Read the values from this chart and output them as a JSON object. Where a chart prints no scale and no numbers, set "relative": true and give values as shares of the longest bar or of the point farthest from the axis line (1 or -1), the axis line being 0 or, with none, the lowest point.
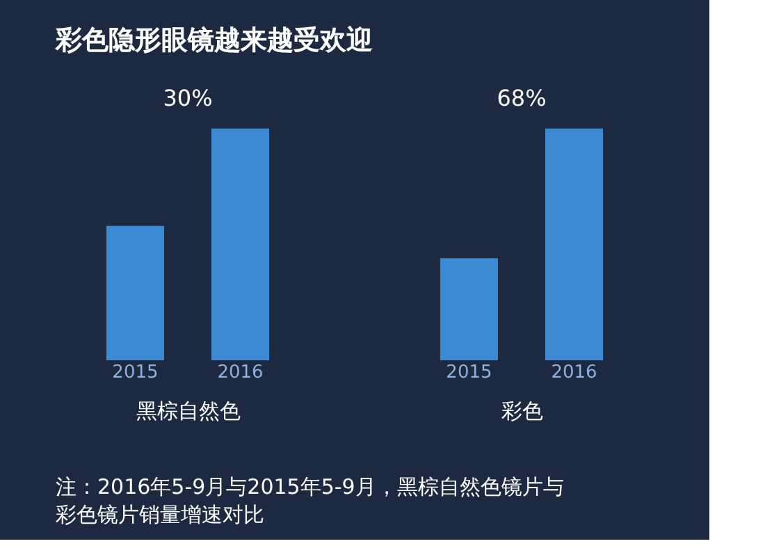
{
  "chart_data": [
    {
      "type": "bar",
      "title": "彩色隐形眼镜越来越受欢迎",
      "categories": [
        "2015",
        "2016"
      ],
      "values": [
        0.58,
        1.0
      ],
      "relative": true,
      "color": "#3a8ad4",
      "xlabel": "黑棕自然色",
      "annotations": [
        "30%",
        "注：2016年5-9月与2015年5-9月，黑棕自然色镜片与彩色镜片销量增速对比"
      ]
    },
    {
      "type": "bar",
      "categories": [
        "2015",
        "2016"
      ],
      "values": [
        0.44,
        1.0
      ],
      "relative": true,
      "color": "#3a8ad4",
      "xlabel": "彩色",
      "annotations": [
        "68%"
      ]
    }
  ]
}
